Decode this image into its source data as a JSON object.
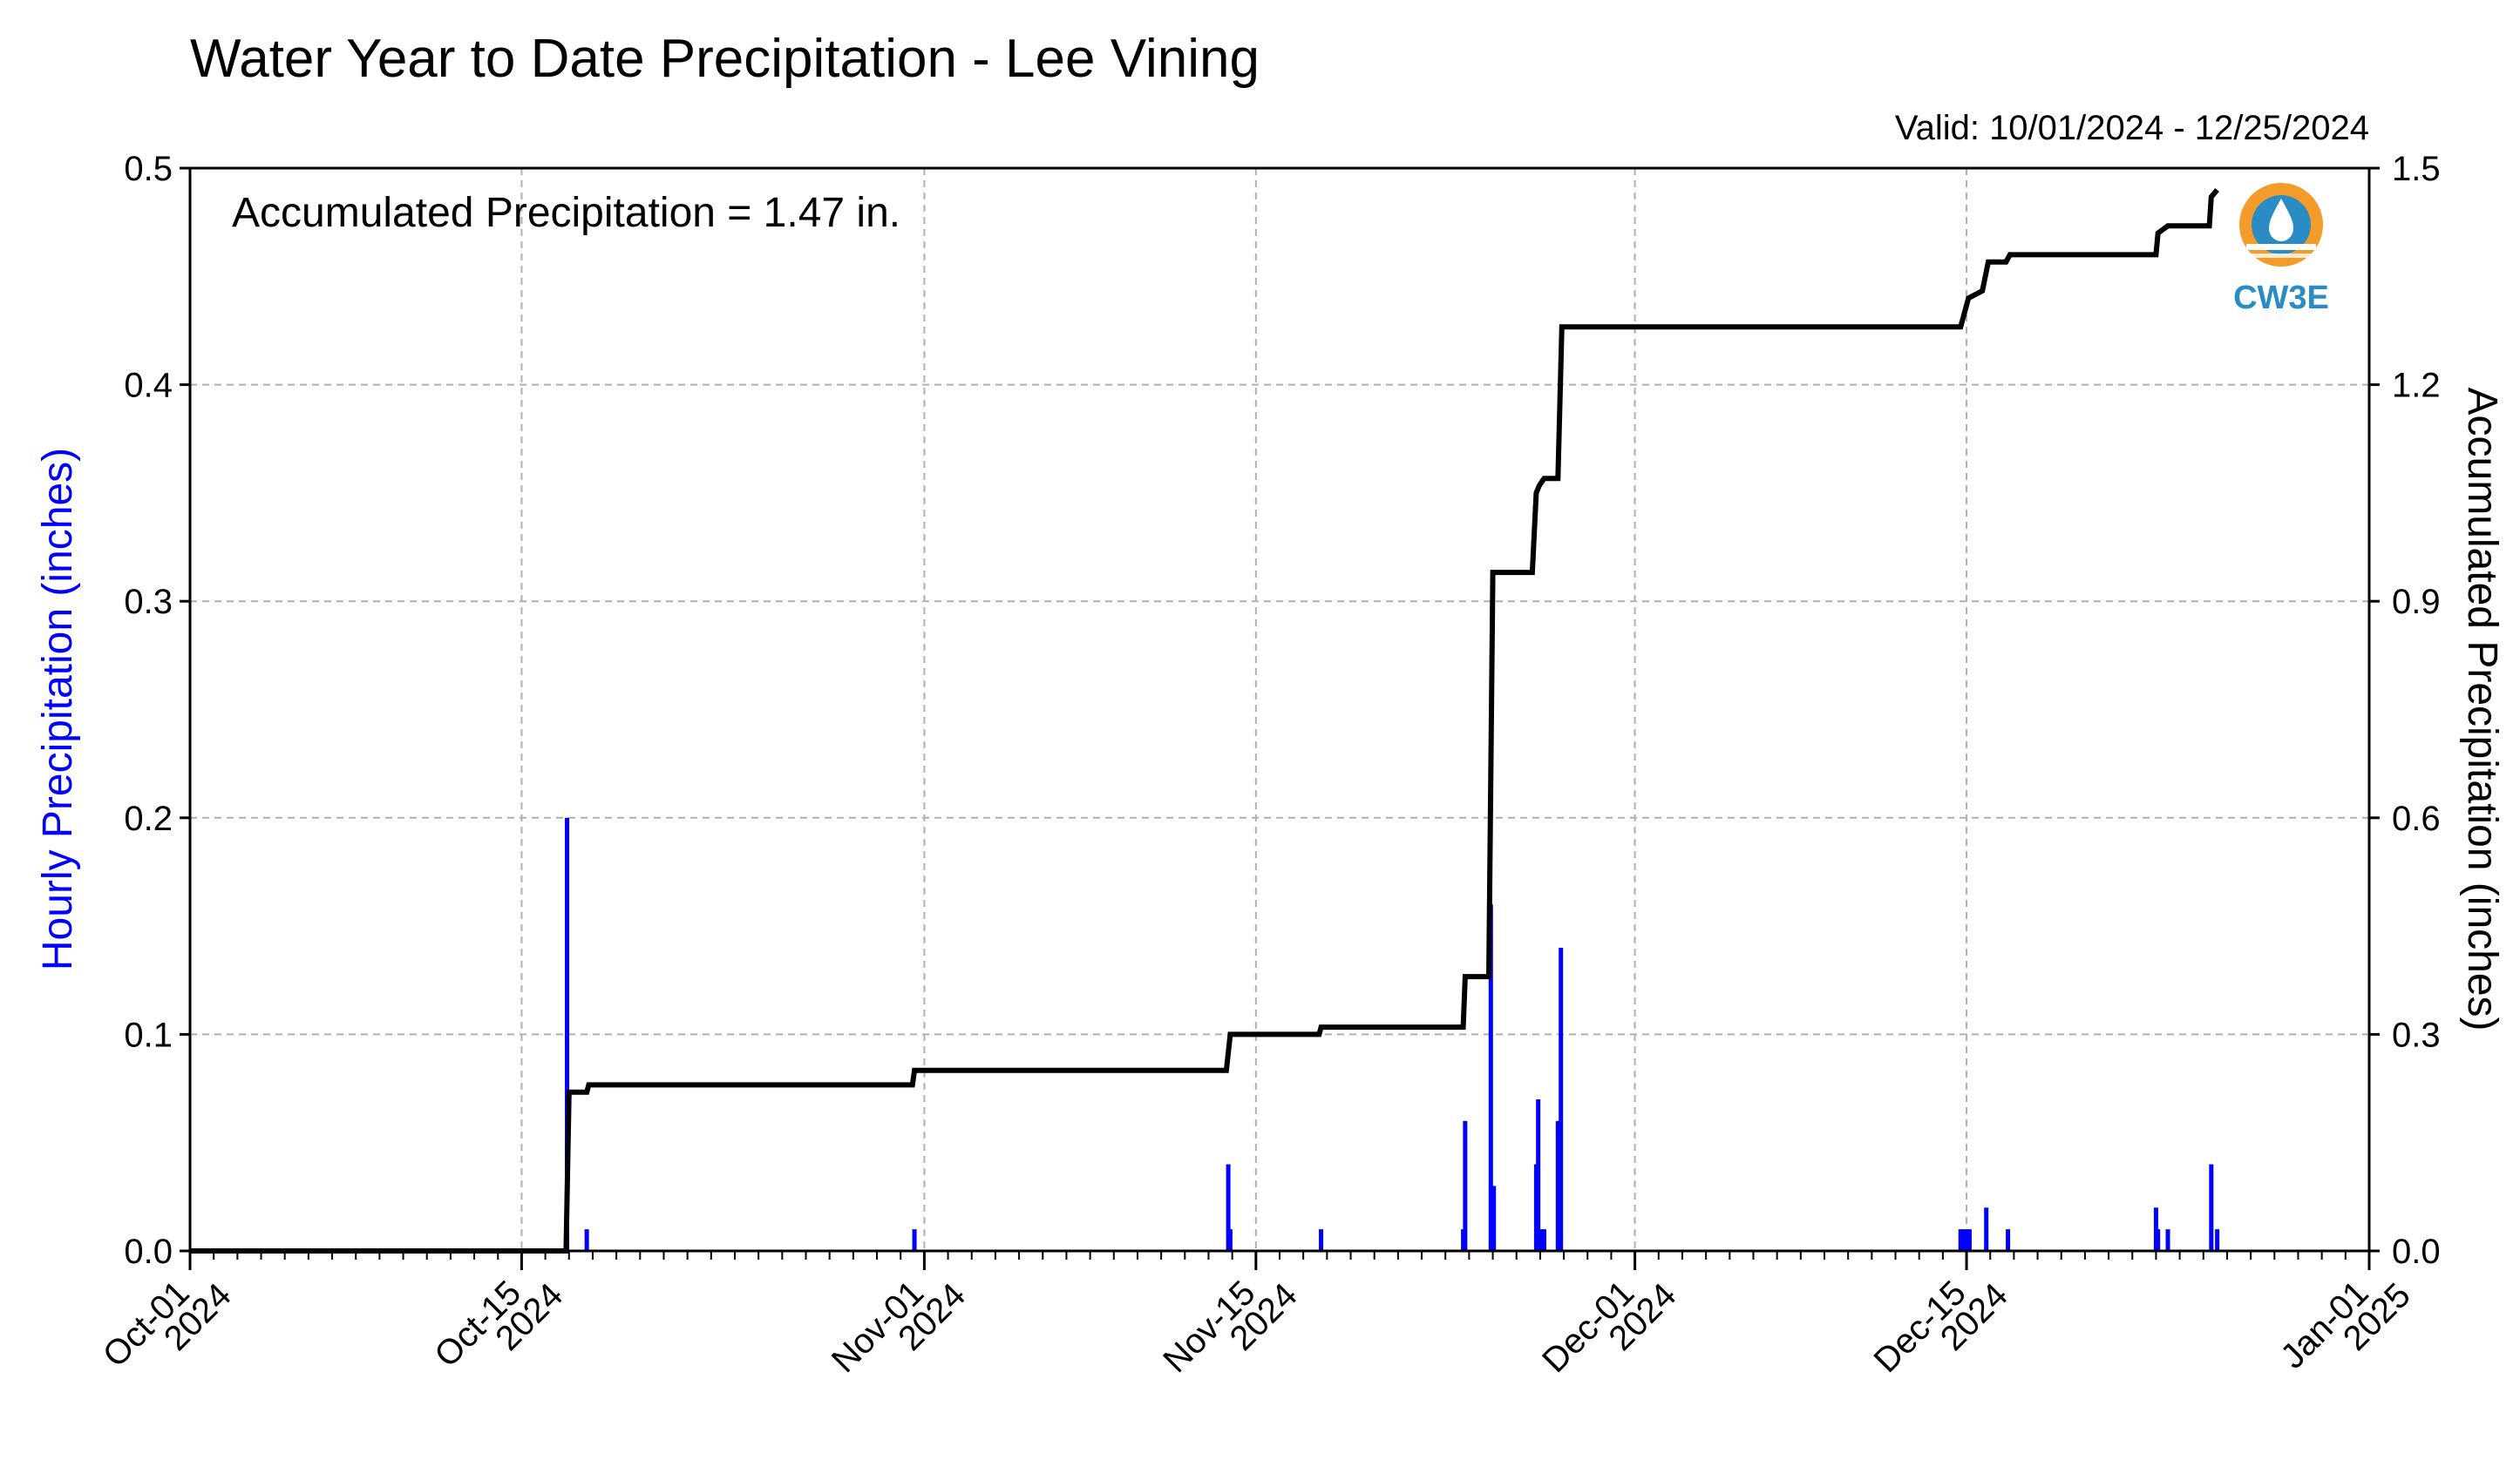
{
  "chart_data": {
    "type": "bar",
    "title": "Water Year to Date Precipitation - Lee Vining",
    "subtitle": "Valid: 10/01/2024 - 12/25/2024",
    "annotation": "Accumulated Precipitation = 1.47 in.",
    "logo_text": "CW3E",
    "left_ylabel": "Hourly Precipitation (inches)",
    "right_ylabel": "Accumulated Precipitation (inches)",
    "left_ylim": [
      0,
      0.5
    ],
    "right_ylim": [
      0,
      1.5
    ],
    "x_range": [
      "2024-10-01",
      "2025-01-01"
    ],
    "left_yticks": [
      "0.0",
      "0.1",
      "0.2",
      "0.3",
      "0.4",
      "0.5"
    ],
    "right_yticks": [
      "0.0",
      "0.3",
      "0.6",
      "0.9",
      "1.2",
      "1.5"
    ],
    "xticks": [
      {
        "date": "2024-10-01",
        "line1": "Oct-01",
        "line2": "2024"
      },
      {
        "date": "2024-10-15",
        "line1": "Oct-15",
        "line2": "2024"
      },
      {
        "date": "2024-11-01",
        "line1": "Nov-01",
        "line2": "2024"
      },
      {
        "date": "2024-11-15",
        "line1": "Nov-15",
        "line2": "2024"
      },
      {
        "date": "2024-12-01",
        "line1": "Dec-01",
        "line2": "2024"
      },
      {
        "date": "2024-12-15",
        "line1": "Dec-15",
        "line2": "2024"
      },
      {
        "date": "2025-01-01",
        "line1": "Jan-01",
        "line2": "2025"
      }
    ],
    "grid": true,
    "colors": {
      "hourly": "#0000ff",
      "accumulated": "#000000",
      "grid": "#b0b0b0",
      "logo_orange": "#f39c2a",
      "logo_blue": "#2a8cc4"
    },
    "series": [
      {
        "name": "Hourly Precipitation (inches)",
        "type": "bar",
        "points": [
          [
            "2024-10-16T22:00",
            0.2
          ],
          [
            "2024-10-17T18:00",
            0.01
          ],
          [
            "2024-10-31T14:00",
            0.01
          ],
          [
            "2024-11-13T20:00",
            0.04
          ],
          [
            "2024-11-13T22:00",
            0.01
          ],
          [
            "2024-11-17T18:00",
            0.01
          ],
          [
            "2024-11-23T18:00",
            0.01
          ],
          [
            "2024-11-23T20:00",
            0.06
          ],
          [
            "2024-11-24T22:00",
            0.16
          ],
          [
            "2024-11-25T01:00",
            0.03
          ],
          [
            "2024-11-26T20:00",
            0.04
          ],
          [
            "2024-11-26T22:00",
            0.07
          ],
          [
            "2024-11-27T02:00",
            0.01
          ],
          [
            "2024-11-27T04:00",
            0.01
          ],
          [
            "2024-11-27T18:00",
            0.06
          ],
          [
            "2024-11-27T21:00",
            0.14
          ],
          [
            "2024-12-14T18:00",
            0.01
          ],
          [
            "2024-12-14T21:00",
            0.01
          ],
          [
            "2024-12-15T00:00",
            0.01
          ],
          [
            "2024-12-15T03:00",
            0.01
          ],
          [
            "2024-12-15T20:00",
            0.02
          ],
          [
            "2024-12-16T18:00",
            0.01
          ],
          [
            "2024-12-23T00:00",
            0.02
          ],
          [
            "2024-12-23T02:00",
            0.01
          ],
          [
            "2024-12-23T12:00",
            0.01
          ],
          [
            "2024-12-25T08:00",
            0.04
          ],
          [
            "2024-12-25T14:00",
            0.01
          ]
        ]
      },
      {
        "name": "Accumulated Precipitation (inches)",
        "type": "line",
        "points": [
          [
            "2024-10-01T00:00",
            0.0
          ],
          [
            "2024-10-16T21:00",
            0.0
          ],
          [
            "2024-10-17T00:00",
            0.22
          ],
          [
            "2024-10-17T18:00",
            0.22
          ],
          [
            "2024-10-17T20:00",
            0.23
          ],
          [
            "2024-10-31T12:00",
            0.23
          ],
          [
            "2024-10-31T14:00",
            0.25
          ],
          [
            "2024-11-13T18:00",
            0.25
          ],
          [
            "2024-11-13T22:00",
            0.3
          ],
          [
            "2024-11-17T16:00",
            0.3
          ],
          [
            "2024-11-17T18:00",
            0.31
          ],
          [
            "2024-11-23T18:00",
            0.31
          ],
          [
            "2024-11-23T20:00",
            0.38
          ],
          [
            "2024-11-24T20:00",
            0.38
          ],
          [
            "2024-11-25T00:00",
            0.94
          ],
          [
            "2024-11-26T16:00",
            0.94
          ],
          [
            "2024-11-26T20:00",
            1.05
          ],
          [
            "2024-11-26T23:00",
            1.06
          ],
          [
            "2024-11-27T04:00",
            1.07
          ],
          [
            "2024-11-27T18:00",
            1.07
          ],
          [
            "2024-11-27T22:00",
            1.28
          ],
          [
            "2024-12-14T18:00",
            1.28
          ],
          [
            "2024-12-14T22:00",
            1.3
          ],
          [
            "2024-12-15T02:00",
            1.32
          ],
          [
            "2024-12-15T16:00",
            1.33
          ],
          [
            "2024-12-15T22:00",
            1.37
          ],
          [
            "2024-12-16T16:00",
            1.37
          ],
          [
            "2024-12-16T20:00",
            1.38
          ],
          [
            "2024-12-23T00:00",
            1.38
          ],
          [
            "2024-12-23T02:00",
            1.41
          ],
          [
            "2024-12-23T12:00",
            1.42
          ],
          [
            "2024-12-25T06:00",
            1.42
          ],
          [
            "2024-12-25T08:00",
            1.46
          ],
          [
            "2024-12-25T14:00",
            1.47
          ]
        ]
      }
    ]
  }
}
